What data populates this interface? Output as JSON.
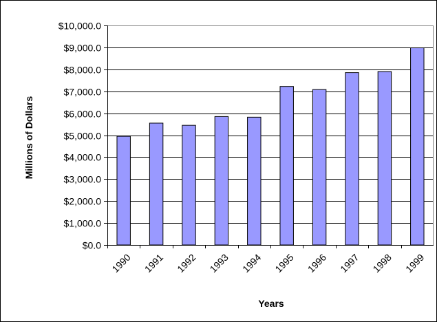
{
  "chart_data": {
    "type": "bar",
    "title": "",
    "xlabel": "Years",
    "ylabel": "Millions of Dollars",
    "categories": [
      "1990",
      "1991",
      "1992",
      "1993",
      "1994",
      "1995",
      "1996",
      "1997",
      "1998",
      "1999"
    ],
    "values": [
      4950,
      5550,
      5450,
      5850,
      5820,
      7220,
      7080,
      7850,
      7900,
      8980
    ],
    "ylim": [
      0,
      10000
    ],
    "yticks": [
      0,
      1000,
      2000,
      3000,
      4000,
      5000,
      6000,
      7000,
      8000,
      9000,
      10000
    ],
    "ytick_labels": [
      "$0.0",
      "$1,000.0",
      "$2,000.0",
      "$3,000.0",
      "$4,000.0",
      "$5,000.0",
      "$6,000.0",
      "$7,000.0",
      "$8,000.0",
      "$9,000.0",
      "$10,000.0"
    ],
    "grid": true,
    "legend": "none",
    "colors": {
      "bar_fill": "#9999FF",
      "bar_stroke": "#000000",
      "grid": "#000000",
      "plot_border": "#808080"
    }
  }
}
